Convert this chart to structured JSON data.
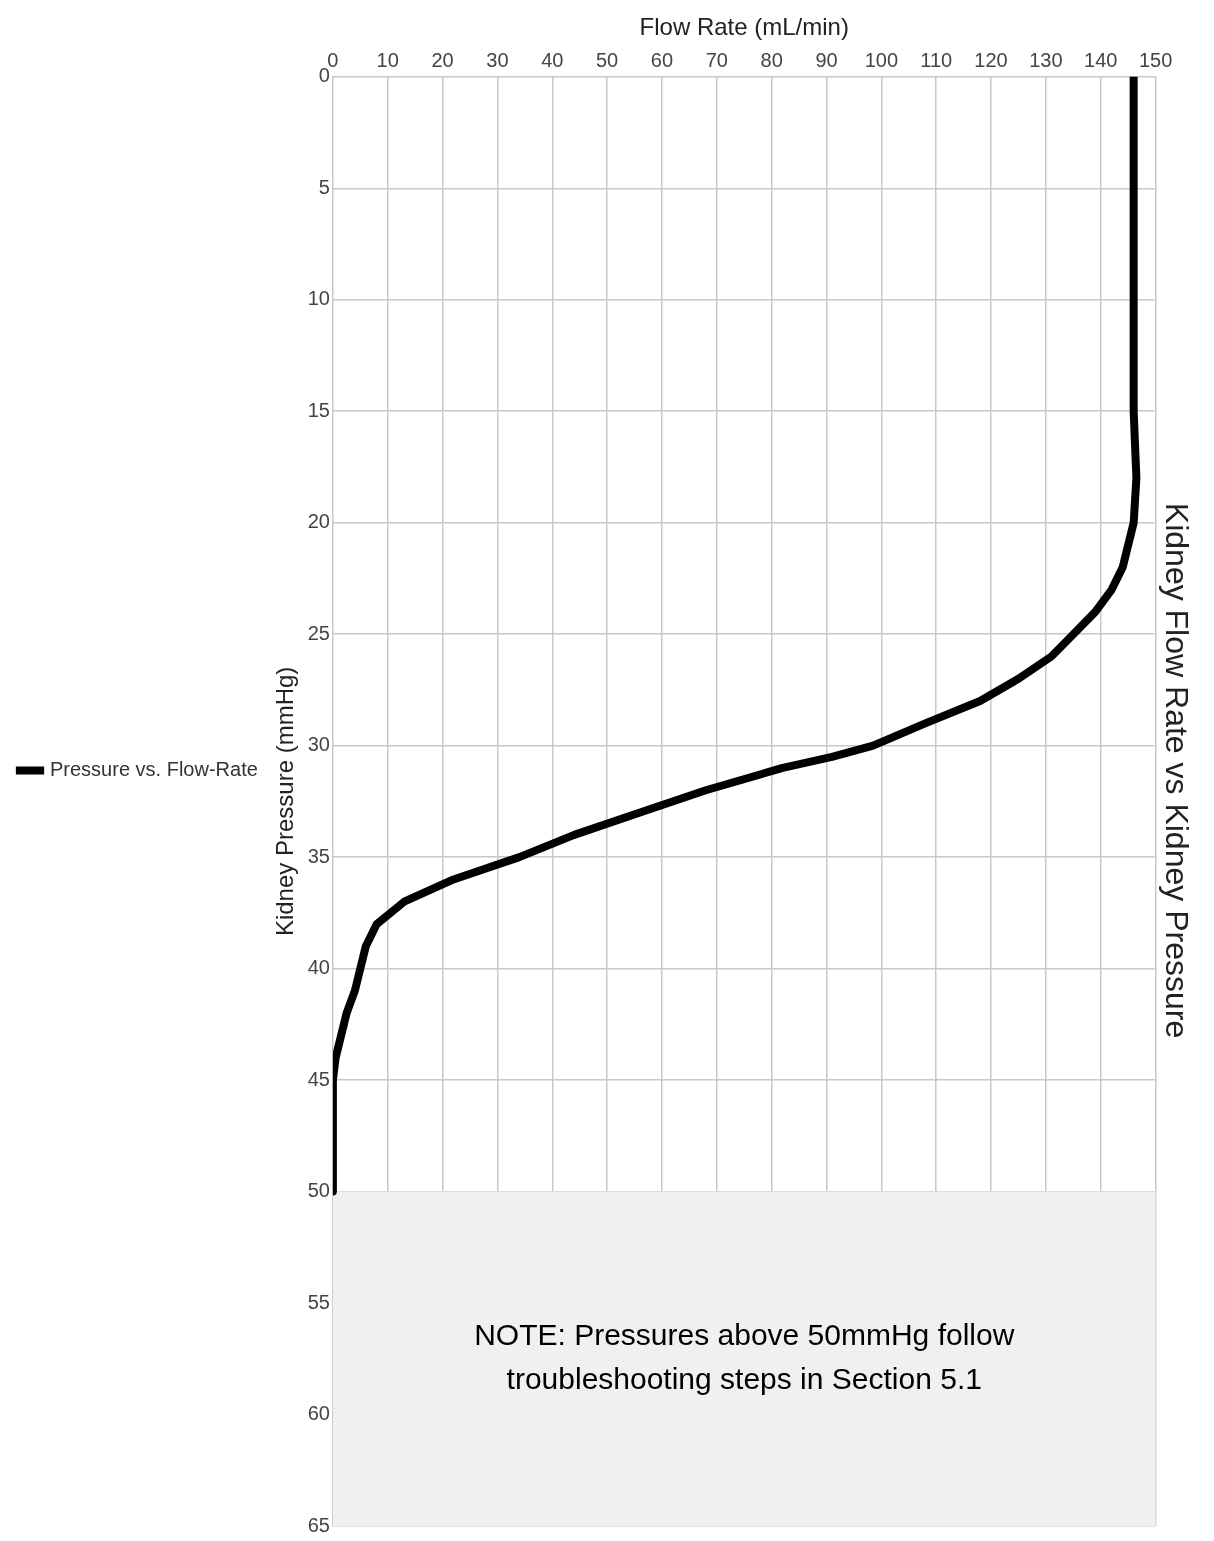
{
  "chart_data": {
    "type": "line",
    "title": "Kidney Flow Rate vs Kidney Pressure",
    "xlabel": "Flow Rate (mL/min)",
    "ylabel": "Kidney Pressure (mmHg)",
    "series": [
      {
        "name": "Pressure vs. Flow-Rate",
        "color": "#000000",
        "x": [
          146,
          146,
          146.5,
          146,
          145,
          144,
          142,
          139,
          135,
          131,
          125,
          118,
          108,
          98.5,
          91,
          82,
          68,
          56,
          44,
          34,
          22,
          13,
          8,
          6,
          5,
          4,
          2.5,
          1.5,
          0.5,
          0,
          0
        ],
        "values": [
          0,
          15,
          18,
          20,
          21,
          22,
          23,
          24,
          25,
          26,
          27,
          28,
          29,
          30,
          30.5,
          31,
          32,
          33,
          34,
          35,
          36,
          37,
          38,
          39,
          40,
          41,
          42,
          43,
          44,
          45,
          50
        ]
      }
    ],
    "xlim": [
      0,
      150
    ],
    "xticks": [
      0,
      10,
      20,
      30,
      40,
      50,
      60,
      70,
      80,
      90,
      100,
      110,
      120,
      130,
      140,
      150
    ],
    "ylim": [
      65,
      0
    ],
    "yticks": [
      0,
      5,
      10,
      15,
      20,
      25,
      30,
      35,
      40,
      45,
      50,
      55,
      60,
      65
    ],
    "grid": true,
    "legend": "left",
    "marker": "none",
    "line_style": "solid",
    "bands": [
      {
        "axis": "y",
        "from": 50,
        "to": 65,
        "label": "NOTE: Pressures above 50mmHg follow troubleshooting steps in Section 5.1",
        "color": "#f0f0f0"
      }
    ]
  }
}
